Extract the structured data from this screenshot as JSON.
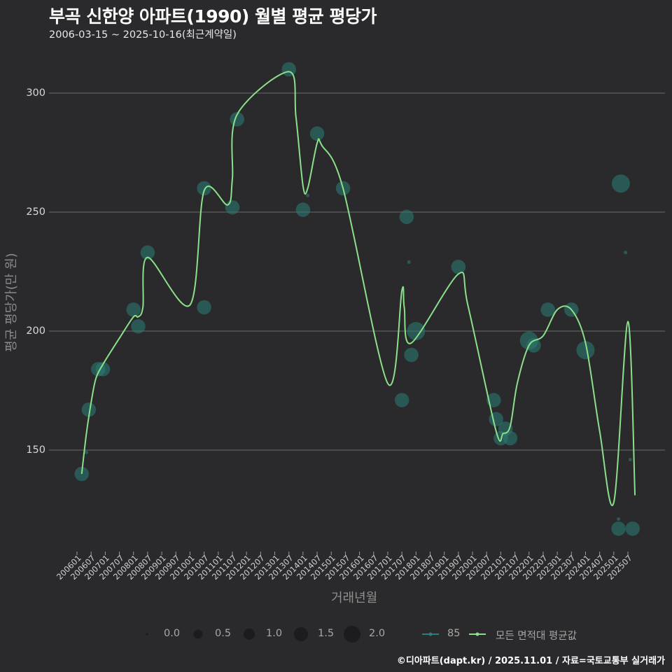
{
  "title": "부곡 신한양 아파트(1990) 월별 평균 평당가",
  "subtitle": "2006-03-15 ~ 2025-10-16(최근계약일)",
  "footer": "©디아파트(dapt.kr) / 2025.11.01 / 자료=국토교통부 실거래가",
  "colors": {
    "background": "#2a292b",
    "series_85": "#2a7f77",
    "series_avg": "#8be08a",
    "grid": "#6b6b6b"
  },
  "legend": {
    "size_title": "",
    "sizes": [
      "0.0",
      "0.5",
      "1.0",
      "1.5",
      "2.0"
    ],
    "series": [
      {
        "label": "85",
        "color": "#2a7f77"
      },
      {
        "label": "모든 면적대 평균값",
        "color": "#8be08a"
      }
    ]
  },
  "chart_data": {
    "type": "line",
    "title": "부곡 신한양 아파트(1990) 월별 평균 평당가",
    "subtitle": "2006-03-15 ~ 2025-10-16(최근계약일)",
    "xlabel": "거래년월",
    "ylabel": "평균 평당가(만 원)",
    "ylim": [
      112,
      315
    ],
    "yticks": [
      150,
      200,
      250,
      300
    ],
    "grid": "horizontal",
    "legend_position": "bottom",
    "x_tick_labels": [
      "200601",
      "200607",
      "200701",
      "200707",
      "200801",
      "200807",
      "200901",
      "200907",
      "201001",
      "201007",
      "201101",
      "201107",
      "201201",
      "201207",
      "201301",
      "201307",
      "201401",
      "201407",
      "201501",
      "201507",
      "201601",
      "201607",
      "201701",
      "201707",
      "201801",
      "201807",
      "201901",
      "201907",
      "202001",
      "202007",
      "202101",
      "202107",
      "202201",
      "202207",
      "202301",
      "202307",
      "202401",
      "202407",
      "202501",
      "202507"
    ],
    "series": [
      {
        "name": "모든 면적대 평균값",
        "type": "line",
        "points": [
          [
            "200603",
            140
          ],
          [
            "200605",
            157
          ],
          [
            "200607",
            170
          ],
          [
            "200609",
            180
          ],
          [
            "200612",
            186
          ],
          [
            "200707",
            197
          ],
          [
            "200801",
            206
          ],
          [
            "200803",
            206
          ],
          [
            "200805",
            210
          ],
          [
            "200807",
            231
          ],
          [
            "201001",
            211
          ],
          [
            "201007",
            259
          ],
          [
            "201105",
            253
          ],
          [
            "201107",
            264
          ],
          [
            "201109",
            291
          ],
          [
            "201307",
            309
          ],
          [
            "201310",
            290
          ],
          [
            "201401",
            261
          ],
          [
            "201403",
            260
          ],
          [
            "201407",
            279
          ],
          [
            "201409",
            278
          ],
          [
            "201506",
            260
          ],
          [
            "201701",
            178
          ],
          [
            "201707",
            217
          ],
          [
            "201708",
            210
          ],
          [
            "201711",
            195
          ],
          [
            "201907",
            224
          ],
          [
            "201911",
            211
          ],
          [
            "202011",
            158
          ],
          [
            "202102",
            157
          ],
          [
            "202105",
            160
          ],
          [
            "202108",
            178
          ],
          [
            "202201",
            194
          ],
          [
            "202207",
            198
          ],
          [
            "202301",
            209
          ],
          [
            "202307",
            209
          ],
          [
            "202401",
            195
          ],
          [
            "202407",
            158
          ],
          [
            "202501",
            128
          ],
          [
            "202507",
            204
          ],
          [
            "202510",
            131
          ]
        ]
      },
      {
        "name": "85",
        "type": "scatter",
        "size_var": "count",
        "points": [
          [
            "200603",
            140,
            1.5
          ],
          [
            "200605",
            149,
            0.1
          ],
          [
            "200606",
            167,
            1.5
          ],
          [
            "200610",
            184,
            1.5
          ],
          [
            "200612",
            184,
            1.5
          ],
          [
            "200801",
            209,
            1.5
          ],
          [
            "200803",
            202,
            1.5
          ],
          [
            "200807",
            233,
            1.5
          ],
          [
            "201007",
            210,
            1.5
          ],
          [
            "201007b",
            260,
            1.5
          ],
          [
            "201107",
            252,
            1.5
          ],
          [
            "201109",
            289,
            1.5
          ],
          [
            "201307",
            310,
            1.5
          ],
          [
            "201401",
            251,
            1.5
          ],
          [
            "201403",
            257,
            0.1
          ],
          [
            "201407",
            283,
            1.5
          ],
          [
            "201506",
            260,
            1.5
          ],
          [
            "201707",
            171,
            1.5
          ],
          [
            "201709",
            248,
            1.5
          ],
          [
            "201710",
            229,
            0.1
          ],
          [
            "201711",
            190,
            1.5
          ],
          [
            "201801",
            200,
            2.0
          ],
          [
            "201907",
            227,
            1.5
          ],
          [
            "202010",
            171,
            1.5
          ],
          [
            "202011",
            163,
            1.5
          ],
          [
            "202101",
            155,
            1.5
          ],
          [
            "202103",
            159,
            1.5
          ],
          [
            "202105",
            155,
            1.5
          ],
          [
            "202201",
            196,
            2.0
          ],
          [
            "202203",
            194,
            1.5
          ],
          [
            "202209",
            209,
            1.5
          ],
          [
            "202307",
            209,
            1.5
          ],
          [
            "202401",
            192,
            2.0
          ],
          [
            "202503",
            121,
            0.1
          ],
          [
            "202503",
            117,
            1.5
          ],
          [
            "202504",
            262,
            2.0
          ],
          [
            "202506",
            233,
            0.1
          ],
          [
            "202508",
            146,
            0.1
          ],
          [
            "202509",
            117,
            1.5
          ]
        ]
      }
    ]
  }
}
